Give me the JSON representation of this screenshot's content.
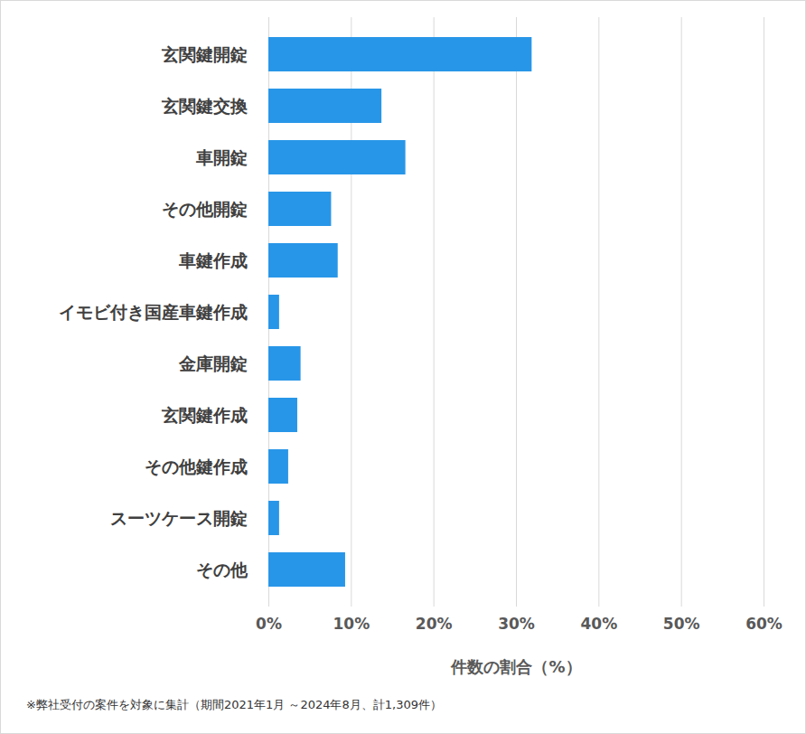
{
  "chart_data": {
    "type": "bar",
    "orientation": "horizontal",
    "categories": [
      "玄関鍵開錠",
      "玄関鍵交換",
      "車開錠",
      "その他開錠",
      "車鍵作成",
      "イモビ付き国産車鍵作成",
      "金庫開錠",
      "玄関鍵作成",
      "その他鍵作成",
      "スーツケース開錠",
      "その他"
    ],
    "values": [
      31.9,
      13.7,
      16.6,
      7.6,
      8.4,
      1.3,
      3.9,
      3.5,
      2.4,
      1.3,
      9.3
    ],
    "color": "#2896e8",
    "x_label": "件数の割合（%）",
    "caption": "※弊社受付の案件を対象に集計（期間2021年1月 ～2024年8月、計1,309件）",
    "xlim": [
      0,
      60
    ],
    "xticks": [
      {
        "value": 0,
        "label": "0%"
      },
      {
        "value": 10,
        "label": "10%"
      },
      {
        "value": 20,
        "label": "20%"
      },
      {
        "value": 30,
        "label": "30%"
      },
      {
        "value": 40,
        "label": "40%"
      },
      {
        "value": 50,
        "label": "50%"
      },
      {
        "value": 60,
        "label": "60%"
      }
    ],
    "grid": true
  }
}
